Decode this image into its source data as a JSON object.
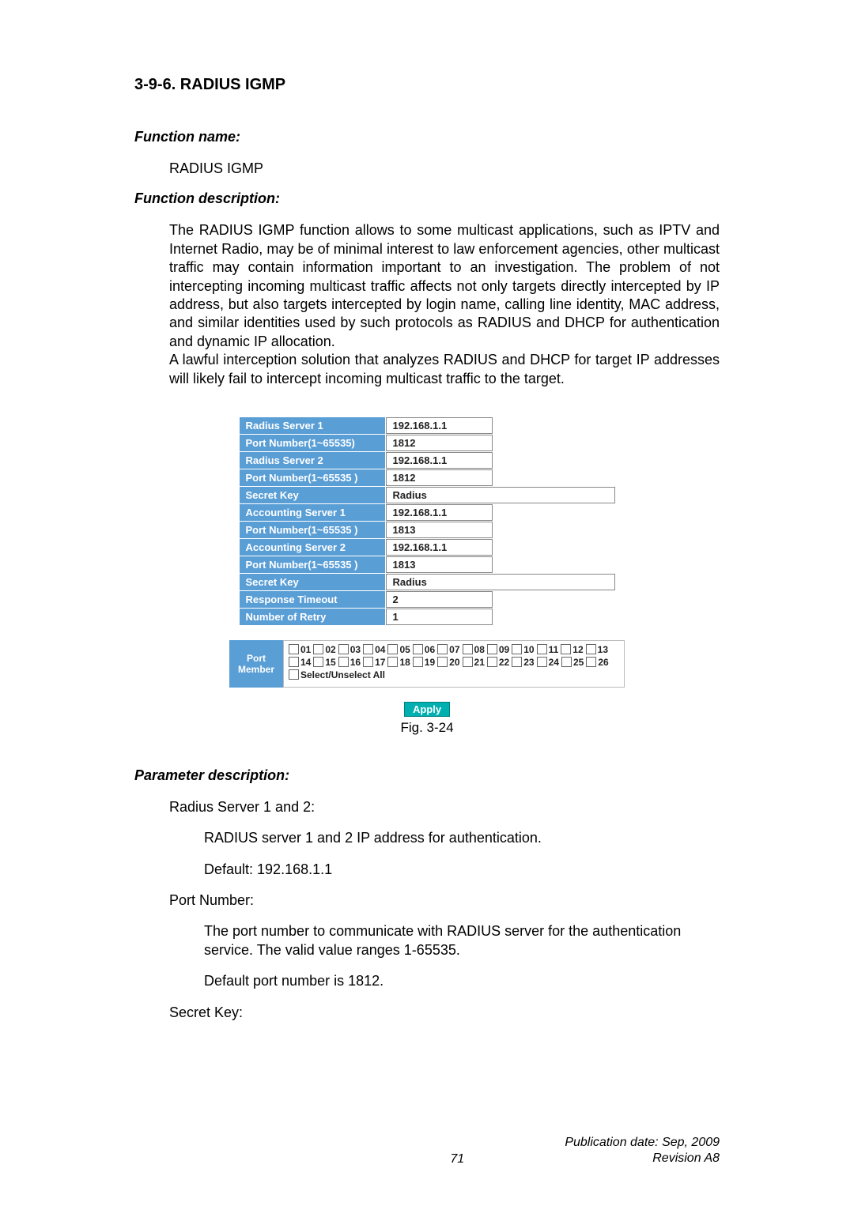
{
  "section": {
    "number_title": "3-9-6. RADIUS IGMP"
  },
  "labels": {
    "function_name": "Function name:",
    "function_name_value": "RADIUS IGMP",
    "function_description": "Function description:",
    "parameter_description": "Parameter description:"
  },
  "paragraphs": {
    "desc1": "The RADIUS IGMP function allows to some multicast applications, such as IPTV and Internet Radio, may be of minimal interest to law enforcement agencies, other multicast traffic may contain information important to an investigation. The problem of not intercepting incoming multicast traffic affects not only targets directly intercepted by IP address, but also targets intercepted by login name, calling line identity, MAC address, and similar identities used by such protocols as RADIUS and DHCP for authentication and dynamic IP allocation.",
    "desc2": "A lawful interception solution that analyzes RADIUS and DHCP for target IP addresses will likely fail to intercept incoming multicast traffic to the target."
  },
  "config": {
    "rows": [
      {
        "label": "Radius Server 1",
        "value": "192.168.1.1",
        "wide": false
      },
      {
        "label": "Port Number(1~65535)",
        "value": "1812",
        "wide": false
      },
      {
        "label": "Radius Server 2",
        "value": "192.168.1.1",
        "wide": false
      },
      {
        "label": "Port Number(1~65535 )",
        "value": "1812",
        "wide": false
      },
      {
        "label": "Secret Key",
        "value": "Radius",
        "wide": true
      },
      {
        "label": "Accounting Server 1",
        "value": "192.168.1.1",
        "wide": false
      },
      {
        "label": "Port Number(1~65535 )",
        "value": "1813",
        "wide": false
      },
      {
        "label": "Accounting Server 2",
        "value": "192.168.1.1",
        "wide": false
      },
      {
        "label": "Port Number(1~65535 )",
        "value": "1813",
        "wide": false
      },
      {
        "label": "Secret Key",
        "value": "Radius",
        "wide": true
      },
      {
        "label": "Response Timeout",
        "value": "2",
        "wide": false
      },
      {
        "label": "Number of Retry",
        "value": "1",
        "wide": false
      }
    ]
  },
  "port_member": {
    "label": "Port\nMember",
    "row1": [
      "01",
      "02",
      "03",
      "04",
      "05",
      "06",
      "07",
      "08",
      "09",
      "10",
      "11",
      "12",
      "13"
    ],
    "row2": [
      "14",
      "15",
      "16",
      "17",
      "18",
      "19",
      "20",
      "21",
      "22",
      "23",
      "24",
      "25",
      "26"
    ],
    "select_all": "Select/Unselect All"
  },
  "apply_label": "Apply",
  "fig_caption": "Fig. 3-24",
  "params": {
    "p1_title": "Radius Server 1 and 2:",
    "p1_line1": "RADIUS server 1 and 2 IP address for authentication.",
    "p1_line2": "Default: 192.168.1.1",
    "p2_title": "Port Number:",
    "p2_line1": "The port number to communicate with RADIUS server for the authentication service. The valid value ranges 1-65535.",
    "p2_line2": "Default port number is 1812.",
    "p3_title": "Secret Key:"
  },
  "footer": {
    "page_num": "71",
    "pub_line1": "Publication date: Sep, 2009",
    "pub_line2": "Revision A8"
  },
  "colors": {
    "header_bg": "#5a9ed6",
    "apply_bg": "#00b0b0"
  }
}
